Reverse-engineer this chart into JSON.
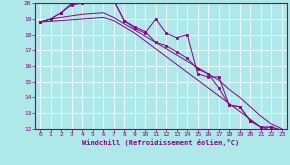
{
  "xlabel": "Windchill (Refroidissement éolien,°C)",
  "x_values": [
    0,
    1,
    2,
    3,
    4,
    5,
    6,
    7,
    8,
    9,
    10,
    11,
    12,
    13,
    14,
    15,
    16,
    17,
    18,
    19,
    20,
    21,
    22,
    23
  ],
  "line1_jagged": [
    18.8,
    19.0,
    19.4,
    19.9,
    20.0,
    20.5,
    20.6,
    20.2,
    18.9,
    18.4,
    18.1,
    19.0,
    18.1,
    17.8,
    18.0,
    15.5,
    15.3,
    15.3,
    13.5,
    13.4,
    12.5,
    12.1,
    12.1,
    11.9
  ],
  "line2_jagged": [
    18.8,
    19.0,
    19.4,
    20.0,
    20.0,
    20.5,
    20.6,
    20.2,
    18.9,
    18.5,
    18.2,
    17.5,
    17.3,
    16.9,
    16.5,
    15.8,
    15.5,
    14.6,
    13.5,
    13.4,
    12.5,
    12.1,
    12.1,
    11.9
  ],
  "line3_smooth": [
    18.8,
    19.0,
    19.1,
    19.2,
    19.3,
    19.35,
    19.4,
    19.1,
    18.7,
    18.3,
    17.9,
    17.5,
    17.1,
    16.7,
    16.3,
    15.9,
    15.5,
    15.1,
    14.5,
    14.0,
    13.4,
    12.8,
    12.3,
    12.0
  ],
  "line4_smooth": [
    18.8,
    18.85,
    18.9,
    18.95,
    19.0,
    19.05,
    19.1,
    18.9,
    18.5,
    18.1,
    17.6,
    17.1,
    16.6,
    16.1,
    15.6,
    15.1,
    14.6,
    14.1,
    13.6,
    13.1,
    12.6,
    12.1,
    11.9,
    11.9
  ],
  "color": "#8b008b",
  "bg_color": "#aee8e8",
  "grid_color": "#ffffff",
  "ylim": [
    12,
    20
  ],
  "yticks": [
    12,
    13,
    14,
    15,
    16,
    17,
    18,
    19,
    20
  ],
  "xlim": [
    -0.5,
    23.5
  ],
  "xticks": [
    0,
    1,
    2,
    3,
    4,
    5,
    6,
    7,
    8,
    9,
    10,
    11,
    12,
    13,
    14,
    15,
    16,
    17,
    18,
    19,
    20,
    21,
    22,
    23
  ]
}
